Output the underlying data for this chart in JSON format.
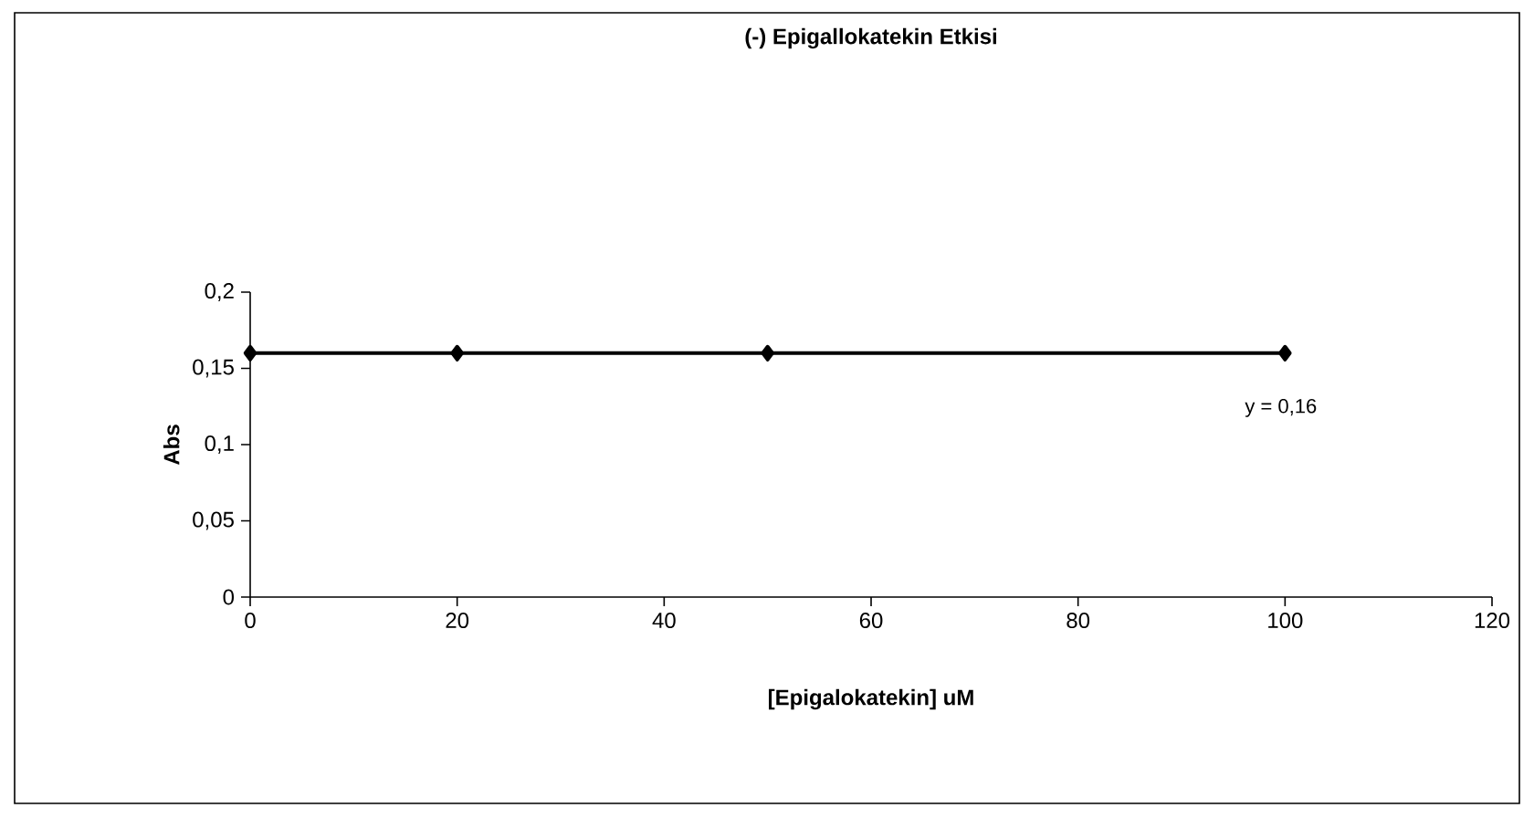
{
  "chart_data": {
    "type": "line",
    "title": "(-) Epigallokatekin Etkisi",
    "xlabel": "[Epigalokatekin] uM",
    "ylabel": "Abs",
    "x": [
      0,
      20,
      50,
      100
    ],
    "series": [
      {
        "color": "#000000",
        "values": [
          0.16,
          0.16,
          0.16,
          0.16
        ]
      }
    ],
    "marker": "diamond",
    "line_style": "solid",
    "xlim": [
      0,
      120
    ],
    "xticks": [
      0,
      20,
      40,
      60,
      80,
      100,
      120
    ],
    "ylim": [
      0,
      0.2
    ],
    "yticks": [
      {
        "value": 0,
        "label": "0"
      },
      {
        "value": 0.05,
        "label": "0,05"
      },
      {
        "value": 0.1,
        "label": "0,1"
      },
      {
        "value": 0.15,
        "label": "0,15"
      },
      {
        "value": 0.2,
        "label": "0,2"
      }
    ],
    "annotations": [
      "y = 0,16"
    ]
  }
}
